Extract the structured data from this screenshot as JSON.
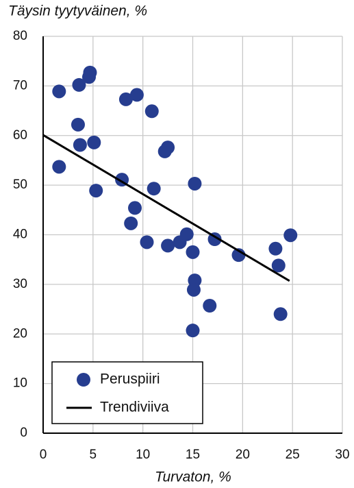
{
  "chart_data": {
    "type": "scatter",
    "ylabel": "Täysin tyytyväinen, %",
    "xlabel": "Turvaton, %",
    "xlim": [
      0,
      30
    ],
    "xticks": [
      0,
      5,
      10,
      15,
      20,
      25,
      30
    ],
    "ylim": [
      0,
      80
    ],
    "yticks": [
      0,
      10,
      20,
      30,
      40,
      50,
      60,
      70,
      80
    ],
    "grid": true,
    "legend": "lower left",
    "series": [
      {
        "name": "Peruspiiri",
        "color": "#263d8f",
        "x": [
          1.6,
          1.6,
          3.6,
          3.5,
          3.7,
          4.7,
          4.6,
          5.1,
          5.3,
          8.3,
          9.4,
          7.9,
          9.2,
          8.8,
          10.9,
          12.5,
          12.2,
          11.1,
          10.4,
          12.5,
          13.7,
          14.4,
          15.0,
          15.2,
          15.2,
          15.1,
          15.0,
          16.7,
          17.2,
          19.6,
          23.3,
          23.6,
          23.8,
          24.8
        ],
        "y": [
          68.9,
          53.7,
          70.2,
          62.2,
          58.1,
          72.7,
          71.8,
          58.6,
          48.9,
          67.3,
          68.2,
          51.1,
          45.4,
          42.3,
          64.9,
          57.6,
          56.8,
          49.3,
          38.5,
          37.8,
          38.5,
          40.1,
          36.5,
          50.3,
          30.8,
          28.9,
          20.7,
          25.7,
          39.1,
          35.9,
          37.2,
          33.8,
          24.0,
          39.9
        ]
      }
    ],
    "trendline": {
      "name": "Trendiviiva",
      "color": "#000000",
      "x": [
        0,
        24.7
      ],
      "y": [
        60.1,
        30.7
      ]
    }
  }
}
